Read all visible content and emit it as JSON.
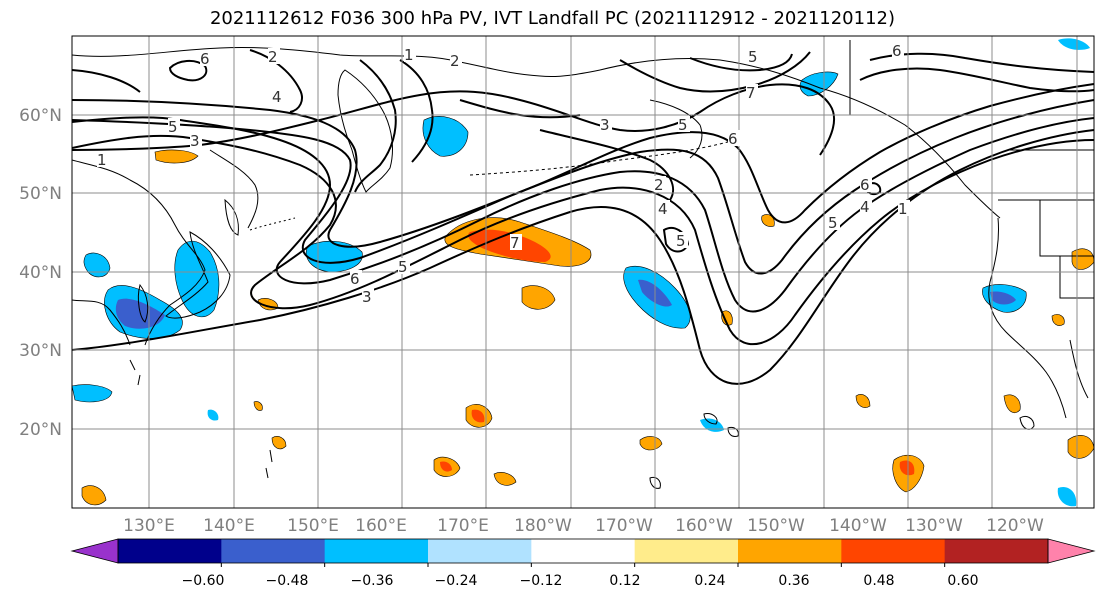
{
  "title": "2021112612 F036 300 hPa PV, IVT Landfall PC (2021112912 - 2021120112)",
  "map": {
    "lat_labels": [
      "60°N",
      "50°N",
      "40°N",
      "30°N",
      "20°N"
    ],
    "lon_labels": [
      "130°E",
      "140°E",
      "150°E",
      "160°E",
      "170°E",
      "180°W",
      "170°W",
      "160°W",
      "150°W",
      "140°W",
      "130°W",
      "120°W"
    ],
    "pv_contour_labels": [
      "1",
      "2",
      "3",
      "4",
      "5",
      "6",
      "7"
    ],
    "gridlines": true,
    "coastlines": true
  },
  "colorbar": {
    "tick_labels": [
      "−0.60",
      "−0.48",
      "−0.36",
      "−0.24",
      "−0.12",
      "0.12",
      "0.24",
      "0.36",
      "0.48",
      "0.60"
    ],
    "colors": [
      "#9932cc",
      "#00008b",
      "#3a5fcd",
      "#00bfff",
      "#b0e2ff",
      "#ffffff",
      "#ffec8b",
      "#ffa500",
      "#ff4500",
      "#b22222",
      "#ff82ab"
    ],
    "extend": "both"
  }
}
